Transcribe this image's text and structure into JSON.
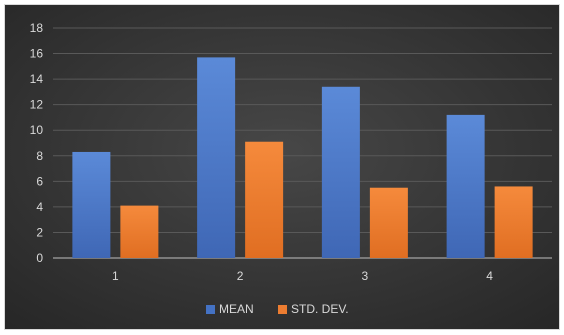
{
  "chart_data": {
    "type": "bar",
    "categories": [
      "1",
      "2",
      "3",
      "4"
    ],
    "series": [
      {
        "name": "MEAN",
        "values": [
          8.3,
          15.7,
          13.4,
          11.2
        ],
        "color": "#4472c4"
      },
      {
        "name": "STD. DEV.",
        "values": [
          4.1,
          9.1,
          5.5,
          5.6
        ],
        "color": "#ed7d31"
      }
    ],
    "ylim": [
      0,
      18
    ],
    "yticks": [
      "0",
      "2",
      "4",
      "6",
      "8",
      "10",
      "12",
      "14",
      "16",
      "18"
    ],
    "grid": true,
    "legend_position": "bottom",
    "background_color": "#3b3b3b",
    "text_color": "#d9d9d9",
    "grid_color": "#595959"
  }
}
